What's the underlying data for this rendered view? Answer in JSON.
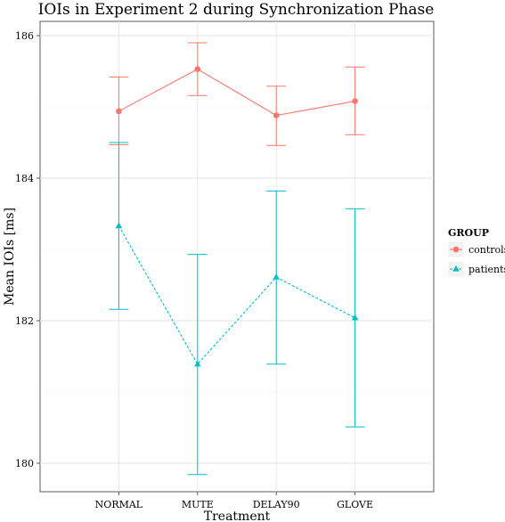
{
  "chart_data": {
    "type": "line",
    "title": "IOIs in Experiment 2 during Synchronization Phase",
    "xlabel": "Treatment",
    "ylabel": "Mean IOIs [ms]",
    "categories": [
      "NORMAL",
      "MUTE",
      "DELAY90",
      "GLOVE"
    ],
    "ylim": [
      179.6,
      186.2
    ],
    "yticks": [
      180,
      182,
      184,
      186
    ],
    "grid": true,
    "legend": {
      "title": "GROUP",
      "position": "right"
    },
    "series": [
      {
        "name": "controls",
        "color": "#F8766D",
        "marker": "circle",
        "linestyle": "solid",
        "values": [
          184.94,
          185.53,
          184.88,
          185.08
        ],
        "error_low": [
          184.47,
          185.16,
          184.46,
          184.61
        ],
        "error_high": [
          185.42,
          185.9,
          185.29,
          185.56
        ]
      },
      {
        "name": "patients",
        "color": "#00BFC4",
        "marker": "triangle",
        "linestyle": "dashed",
        "values": [
          183.33,
          181.39,
          182.61,
          182.04
        ],
        "error_low": [
          182.16,
          179.84,
          181.39,
          180.51
        ],
        "error_high": [
          184.5,
          182.93,
          183.82,
          183.57
        ]
      }
    ]
  }
}
